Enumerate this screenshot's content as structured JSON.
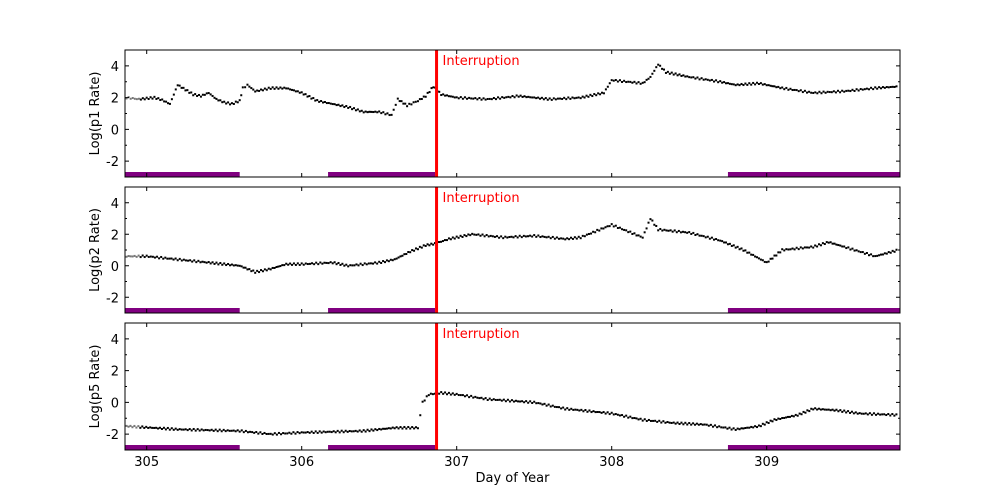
{
  "chart_data": [
    {
      "type": "scatter",
      "ylabel": "Log(p1 Rate)",
      "xlim": [
        304.86,
        309.86
      ],
      "ylim": [
        -3,
        5
      ],
      "yticks": [
        -2,
        0,
        2,
        4
      ],
      "annotation": {
        "text": "Interruption",
        "x": 306.87,
        "color": "#ff0000"
      },
      "shaded_intervals": [
        [
          304.86,
          305.6
        ],
        [
          306.17,
          306.86
        ],
        [
          308.75,
          309.86
        ]
      ],
      "shade_color": "#800080",
      "x": [
        304.87,
        304.95,
        305.05,
        305.1,
        305.15,
        305.2,
        305.25,
        305.3,
        305.35,
        305.4,
        305.45,
        305.5,
        305.55,
        305.6,
        305.62,
        305.65,
        305.7,
        305.8,
        305.9,
        306.0,
        306.1,
        306.2,
        306.3,
        306.4,
        306.5,
        306.58,
        306.62,
        306.68,
        306.75,
        306.8,
        306.85,
        306.9,
        307.0,
        307.2,
        307.4,
        307.6,
        307.8,
        307.95,
        308.0,
        308.2,
        308.25,
        308.3,
        308.35,
        308.5,
        308.7,
        308.8,
        308.95,
        309.1,
        309.3,
        309.5,
        309.7,
        309.85
      ],
      "y": [
        2.0,
        1.9,
        2.0,
        1.85,
        1.6,
        2.8,
        2.5,
        2.2,
        2.1,
        2.3,
        1.9,
        1.7,
        1.6,
        1.8,
        2.6,
        2.8,
        2.4,
        2.6,
        2.6,
        2.3,
        1.8,
        1.6,
        1.4,
        1.1,
        1.1,
        0.9,
        1.9,
        1.5,
        1.8,
        2.1,
        2.7,
        2.2,
        2.0,
        1.9,
        2.1,
        1.9,
        2.0,
        2.3,
        3.1,
        2.9,
        3.3,
        4.1,
        3.6,
        3.3,
        3.0,
        2.8,
        2.9,
        2.6,
        2.3,
        2.4,
        2.6,
        2.7
      ]
    },
    {
      "type": "scatter",
      "ylabel": "Log(p2 Rate)",
      "xlim": [
        304.86,
        309.86
      ],
      "ylim": [
        -3,
        5
      ],
      "yticks": [
        -2,
        0,
        2,
        4
      ],
      "annotation": {
        "text": "Interruption",
        "x": 306.87,
        "color": "#ff0000"
      },
      "shaded_intervals": [
        [
          304.86,
          305.6
        ],
        [
          306.17,
          306.86
        ],
        [
          308.75,
          309.86
        ]
      ],
      "shade_color": "#800080",
      "x": [
        304.87,
        305.0,
        305.2,
        305.4,
        305.6,
        305.7,
        305.8,
        305.9,
        306.0,
        306.2,
        306.3,
        306.5,
        306.6,
        306.7,
        306.8,
        306.86,
        306.95,
        307.1,
        307.3,
        307.5,
        307.7,
        307.8,
        308.0,
        308.2,
        308.25,
        308.3,
        308.5,
        308.7,
        308.85,
        309.0,
        309.1,
        309.3,
        309.4,
        309.5,
        309.7,
        309.85
      ],
      "y": [
        0.6,
        0.6,
        0.4,
        0.2,
        0.0,
        -0.4,
        -0.2,
        0.1,
        0.1,
        0.2,
        0.0,
        0.2,
        0.4,
        0.9,
        1.3,
        1.4,
        1.7,
        2.0,
        1.8,
        1.9,
        1.7,
        1.8,
        2.6,
        1.8,
        3.0,
        2.3,
        2.1,
        1.6,
        1.0,
        0.2,
        1.0,
        1.2,
        1.5,
        1.2,
        0.6,
        1.0
      ]
    },
    {
      "type": "scatter",
      "ylabel": "Log(p5 Rate)",
      "xlabel": "Day of Year",
      "xlim": [
        304.86,
        309.86
      ],
      "ylim": [
        -3,
        5
      ],
      "yticks": [
        -2,
        0,
        2,
        4
      ],
      "xticks": [
        305,
        306,
        307,
        308,
        309
      ],
      "annotation": {
        "text": "Interruption",
        "x": 306.87,
        "color": "#ff0000"
      },
      "shaded_intervals": [
        [
          304.86,
          305.6
        ],
        [
          306.17,
          306.86
        ],
        [
          308.75,
          309.86
        ]
      ],
      "shade_color": "#800080",
      "x": [
        304.87,
        305.2,
        305.6,
        305.8,
        306.0,
        306.4,
        306.6,
        306.75,
        306.78,
        306.82,
        306.9,
        307.0,
        307.2,
        307.5,
        307.7,
        308.0,
        308.2,
        308.4,
        308.6,
        308.8,
        308.95,
        309.05,
        309.2,
        309.3,
        309.45,
        309.6,
        309.85
      ],
      "y": [
        -1.5,
        -1.7,
        -1.8,
        -2.0,
        -1.9,
        -1.8,
        -1.6,
        -1.6,
        0.0,
        0.5,
        0.6,
        0.5,
        0.2,
        0.0,
        -0.4,
        -0.7,
        -1.1,
        -1.3,
        -1.4,
        -1.7,
        -1.5,
        -1.1,
        -0.8,
        -0.4,
        -0.5,
        -0.7,
        -0.8
      ]
    }
  ]
}
